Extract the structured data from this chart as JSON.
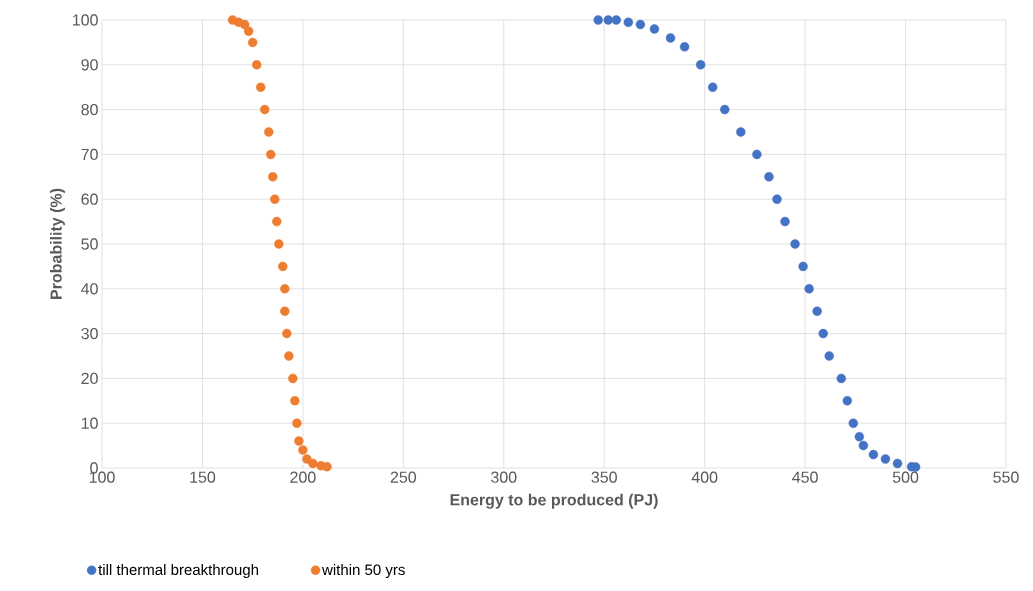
{
  "chart_data": {
    "type": "scatter",
    "xlabel": "Energy to be produced (PJ)",
    "ylabel": "Probability (%)",
    "xlim": [
      100,
      550
    ],
    "xticks": [
      100,
      150,
      200,
      250,
      300,
      350,
      400,
      450,
      500,
      550
    ],
    "ylim": [
      0,
      100
    ],
    "yticks": [
      0,
      10,
      20,
      30,
      40,
      50,
      60,
      70,
      80,
      90,
      100
    ],
    "grid": true,
    "legend": "bottom",
    "marker": "circle",
    "series": [
      {
        "name": "till thermal breakthrough",
        "color": "#4472c4",
        "x": [
          347,
          352,
          356,
          362,
          368,
          375,
          383,
          390,
          398,
          404,
          410,
          418,
          426,
          432,
          436,
          440,
          445,
          449,
          452,
          456,
          459,
          462,
          468,
          471,
          474,
          477,
          479,
          484,
          490,
          496,
          503,
          505
        ],
        "values": [
          100,
          100,
          100,
          99.5,
          99,
          98,
          96,
          94,
          90,
          85,
          80,
          75,
          70,
          65,
          60,
          55,
          50,
          45,
          40,
          35,
          30,
          25,
          20,
          15,
          10,
          7,
          5,
          3,
          2,
          1,
          0.3,
          0.2
        ]
      },
      {
        "name": "within 50 yrs",
        "color": "#ed7d31",
        "x": [
          165,
          168,
          171,
          173,
          175,
          177,
          179,
          181,
          183,
          184,
          185,
          186,
          187,
          188,
          190,
          191,
          191,
          192,
          193,
          195,
          196,
          197,
          198,
          200,
          202,
          205,
          209,
          212
        ],
        "values": [
          100,
          99.5,
          99,
          97.5,
          95,
          90,
          85,
          80,
          75,
          70,
          65,
          60,
          55,
          50,
          45,
          40,
          35,
          30,
          25,
          20,
          15,
          10,
          6,
          4,
          2,
          1,
          0.5,
          0.3
        ]
      }
    ]
  }
}
